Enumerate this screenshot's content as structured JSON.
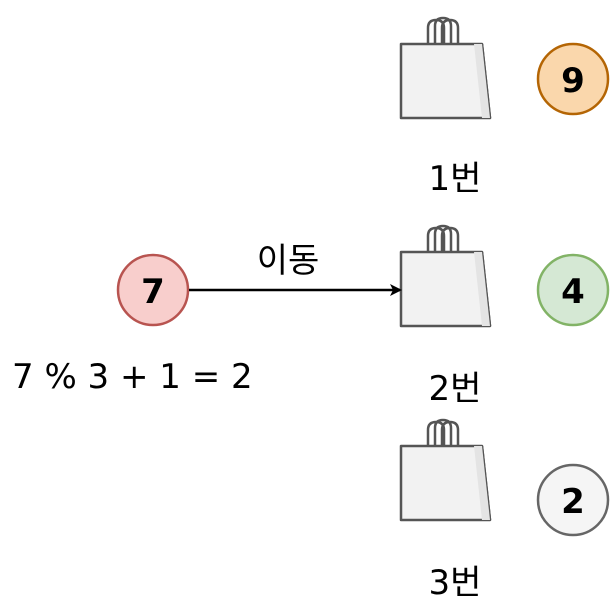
{
  "bags": [
    {
      "label": "1번",
      "ball": "9",
      "ball_fill": "#fad7ac",
      "ball_stroke": "#b46504"
    },
    {
      "label": "2번",
      "ball": "4",
      "ball_fill": "#d5e8d4",
      "ball_stroke": "#82b366"
    },
    {
      "label": "3번",
      "ball": "2",
      "ball_fill": "#f5f5f5",
      "ball_stroke": "#666666"
    }
  ],
  "source_ball": {
    "value": "7",
    "fill": "#f8cecc",
    "stroke": "#b85450"
  },
  "arrow_label": "이동",
  "formula": "7 % 3 + 1 = 2",
  "colors": {
    "bag_fill": "#f2f2f2",
    "bag_stroke": "#555555",
    "line": "#000000"
  }
}
